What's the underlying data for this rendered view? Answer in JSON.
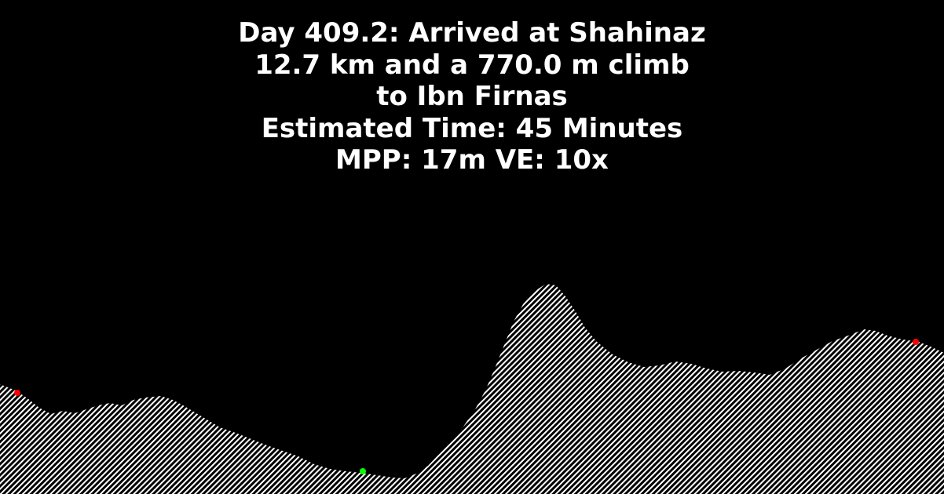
{
  "title_lines": {
    "line1": "Day 409.2: Arrived at Shahinaz",
    "line2": "12.7 km and a 770.0 m climb",
    "line3": "to Ibn Firnas",
    "line4": "Estimated Time: 45 Minutes",
    "line5": "MPP: 17m VE: 10x"
  },
  "colors": {
    "background": "#000000",
    "text": "#ffffff",
    "terrain_hatch": "#ffffff",
    "marker_red": "#ff0000",
    "marker_green": "#00ff00"
  }
}
